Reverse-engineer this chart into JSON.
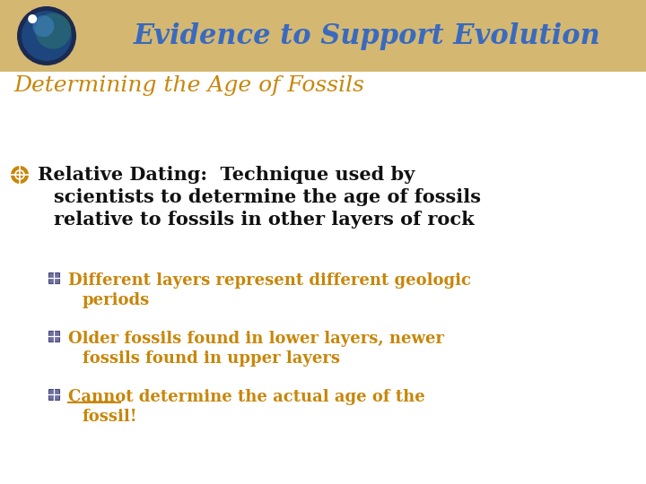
{
  "background_color": "#ffffff",
  "header_bg_color": "#d4b872",
  "header_text": "Evidence to Support Evolution",
  "header_text_color": "#3a6abf",
  "header_font_size": 22,
  "subtitle": "Determining the Age of Fossils",
  "subtitle_color": "#c8860a",
  "subtitle_font_size": 18,
  "bullet1_text_line1": "Relative Dating:  Technique used by",
  "bullet1_text_line2": "scientists to determine the age of fossils",
  "bullet1_text_line3": "relative to fossils in other layers of rock",
  "bullet1_color": "#111111",
  "bullet1_font_size": 15,
  "sub_bullet_color": "#c8860a",
  "sub_bullet_font_size": 13,
  "sub1_line1": "Different layers represent different geologic",
  "sub1_line2": "periods",
  "sub2_line1": "Older fossils found in lower layers, newer",
  "sub2_line2": "fossils found in upper layers",
  "sub3_line1": "Cannot determine the actual age of the",
  "sub3_line2": "fossil!",
  "sub_bullet_icon_color": "#7070a0",
  "globe_dark": "#1a2a50",
  "globe_mid": "#1e5a9c",
  "globe_light": "#4488cc",
  "globe_star": "#ffffff"
}
